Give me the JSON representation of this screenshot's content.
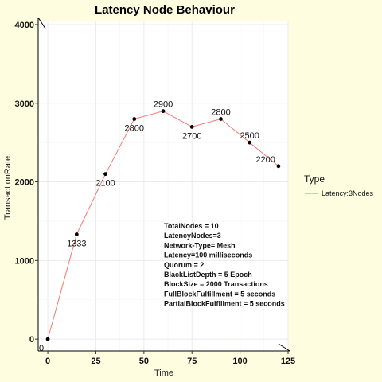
{
  "chart_data": {
    "type": "line",
    "title": "Latency Node Behaviour",
    "xlabel": "Time",
    "ylabel": "TransactionRate",
    "xlim": [
      -5,
      125
    ],
    "ylim": [
      -150,
      4050
    ],
    "x_ticks": [
      0,
      25,
      50,
      75,
      100,
      125
    ],
    "y_ticks": [
      0,
      1000,
      2000,
      3000,
      4000
    ],
    "grid": true,
    "legend_position": "right",
    "legend_title": "Type",
    "series": [
      {
        "name": "Latency:3Nodes",
        "color": "#f8766d",
        "x": [
          0,
          15,
          30,
          45,
          60,
          75,
          90,
          105,
          120
        ],
        "y": [
          0,
          1333,
          2100,
          2800,
          2900,
          2700,
          2800,
          2500,
          2200
        ],
        "labels": [
          "0",
          "1333",
          "2100",
          "2800",
          "2900",
          "2700",
          "2800",
          "2500",
          "2200"
        ]
      }
    ],
    "annotations": [
      "TotalNodes = 10",
      "LatencyNodes=3",
      "Network-Type= Mesh",
      "Latency=100 milliseconds",
      "Quorum = 2",
      "BlackListDepth = 5 Epoch",
      "BlockSize = 2000 Transactions",
      "FullBlockFulfillment = 5 seconds",
      "PartialBlockFulfillment = 5 seconds"
    ]
  }
}
